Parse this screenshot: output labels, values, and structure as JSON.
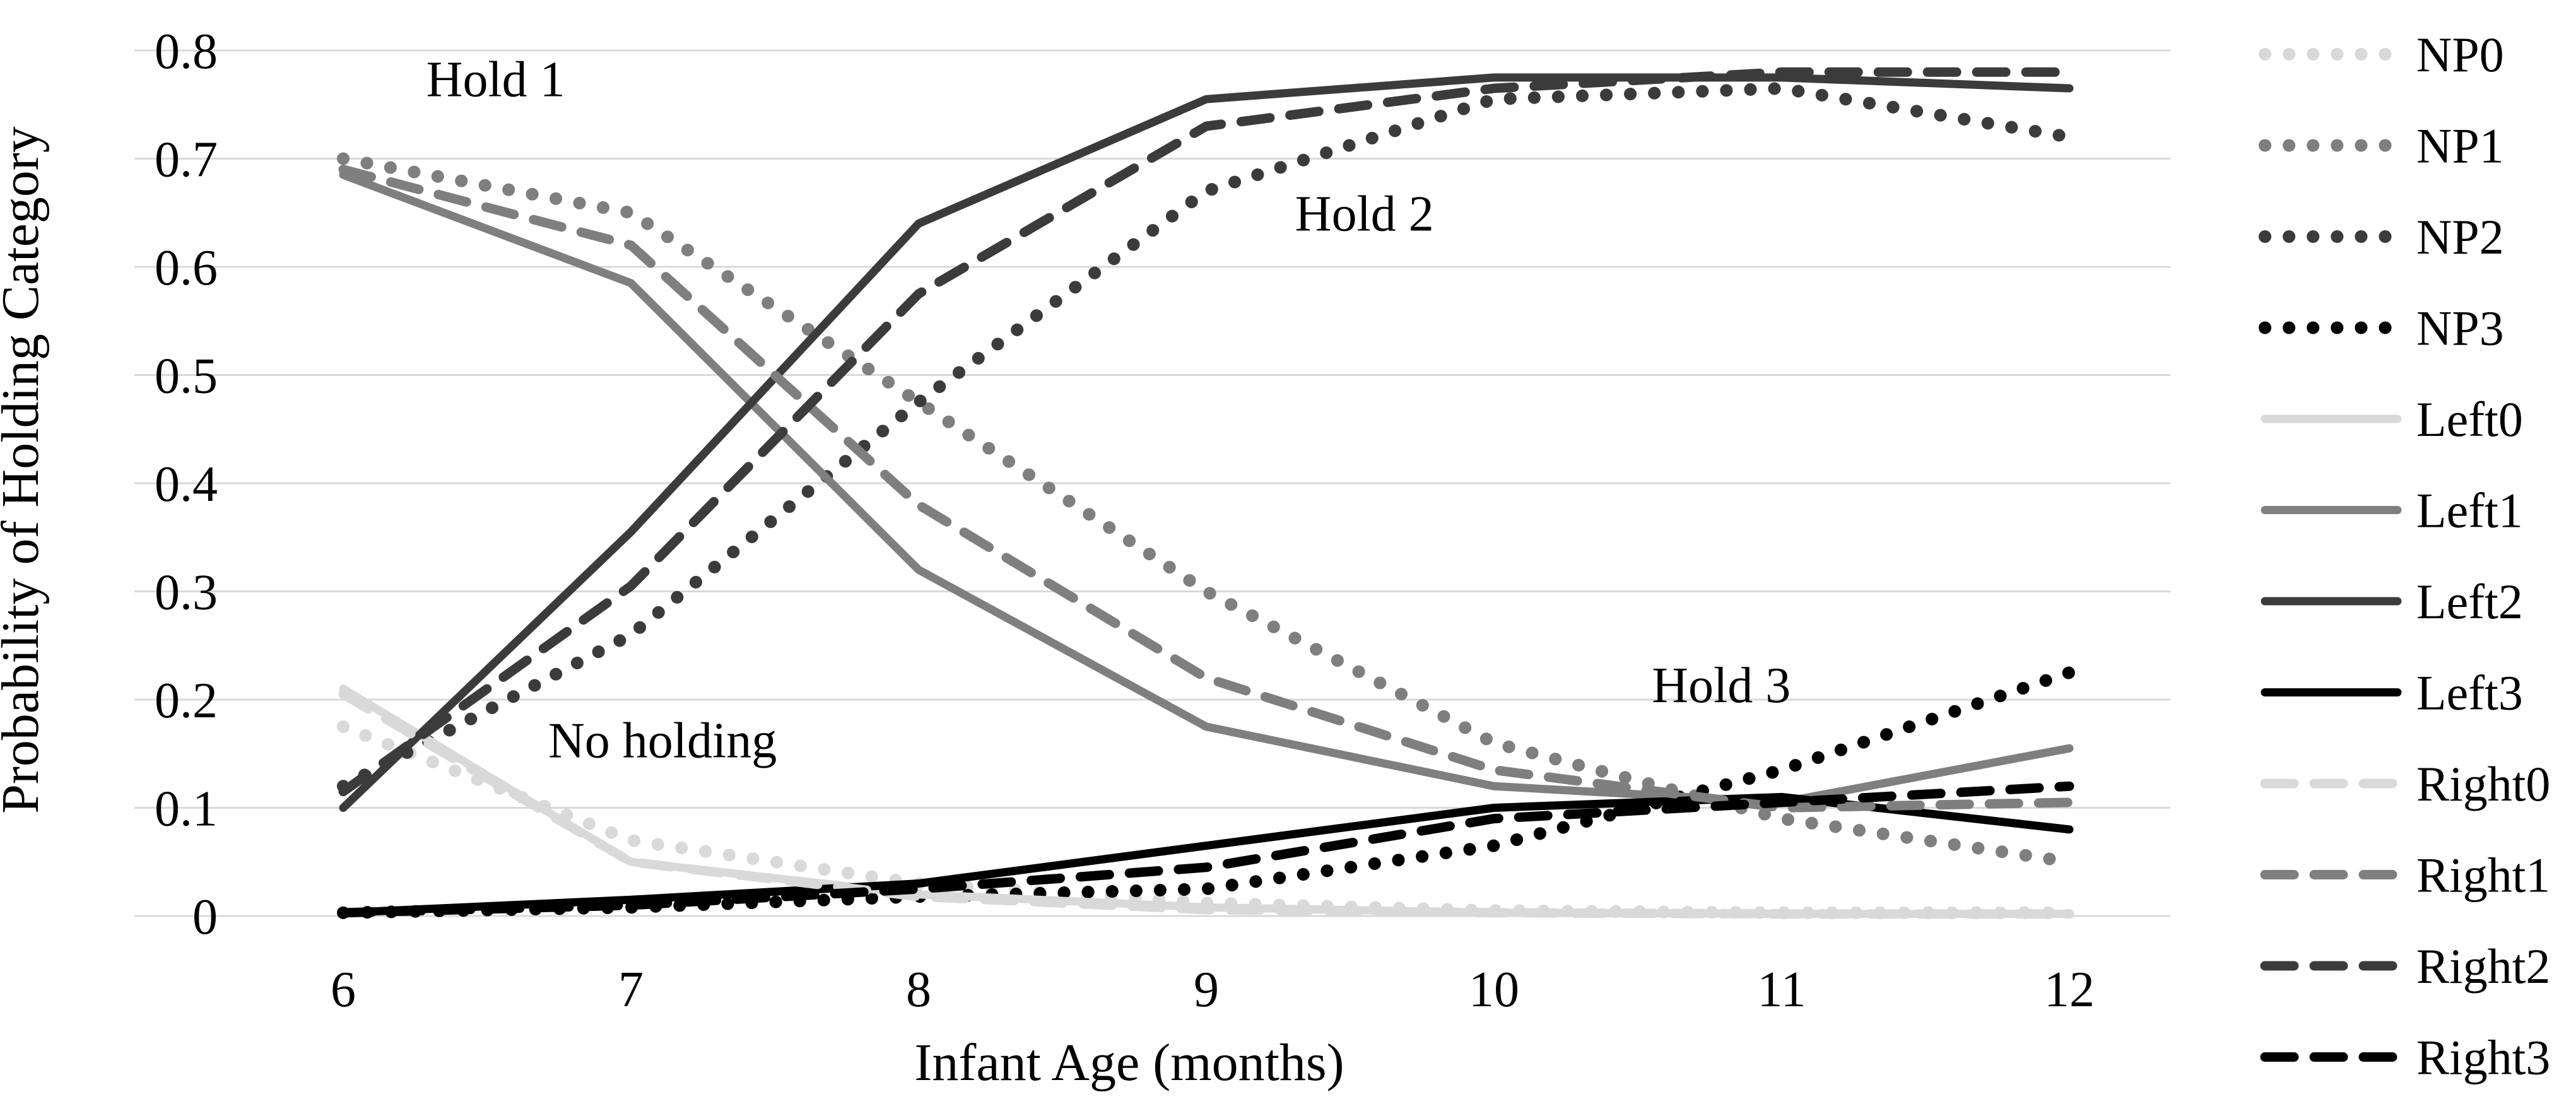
{
  "figure": {
    "y_axis_title": "Probability of Holding Category",
    "x_axis_title": "Infant Age (months)",
    "y_ticks": [
      "0.8",
      "0.7",
      "0.6",
      "0.5",
      "0.4",
      "0.3",
      "0.2",
      "0.1",
      "0"
    ],
    "x_ticks": [
      "6",
      "7",
      "8",
      "9",
      "10",
      "11",
      "12"
    ],
    "colors": {
      "shade0": "#d9d9d9",
      "shade1": "#7f7f7f",
      "shade2": "#3b3b3b",
      "shade3": "#000000",
      "gridline": "#d9d9d9"
    }
  },
  "chart_data": {
    "type": "line",
    "x": [
      6,
      7,
      8,
      9,
      10,
      11,
      12
    ],
    "xlabel": "Infant Age (months)",
    "ylabel": "Probability of Holding Category",
    "xlim": [
      6,
      12
    ],
    "ylim": [
      0,
      0.8
    ],
    "grid": true,
    "legend_position": "right",
    "series": [
      {
        "name": "NP0",
        "style": "dotted",
        "color": "#d9d9d9",
        "values": [
          0.175,
          0.07,
          0.03,
          0.012,
          0.005,
          0.003,
          0.003
        ]
      },
      {
        "name": "NP1",
        "style": "dotted",
        "color": "#7f7f7f",
        "values": [
          0.7,
          0.65,
          0.475,
          0.3,
          0.16,
          0.09,
          0.05
        ]
      },
      {
        "name": "NP2",
        "style": "dotted",
        "color": "#3b3b3b",
        "values": [
          0.12,
          0.26,
          0.475,
          0.67,
          0.755,
          0.765,
          0.72
        ]
      },
      {
        "name": "NP3",
        "style": "dotted",
        "color": "#000000",
        "values": [
          0.003,
          0.008,
          0.018,
          0.025,
          0.065,
          0.135,
          0.225
        ]
      },
      {
        "name": "Left0",
        "style": "solid",
        "color": "#d9d9d9",
        "values": [
          0.21,
          0.05,
          0.02,
          0.008,
          0.003,
          0.002,
          0.002
        ]
      },
      {
        "name": "Left1",
        "style": "solid",
        "color": "#7f7f7f",
        "values": [
          0.685,
          0.585,
          0.32,
          0.175,
          0.12,
          0.105,
          0.155
        ]
      },
      {
        "name": "Left2",
        "style": "solid",
        "color": "#3b3b3b",
        "values": [
          0.1,
          0.355,
          0.64,
          0.755,
          0.775,
          0.775,
          0.765
        ]
      },
      {
        "name": "Left3",
        "style": "solid",
        "color": "#000000",
        "values": [
          0.003,
          0.015,
          0.03,
          0.065,
          0.1,
          0.11,
          0.08
        ]
      },
      {
        "name": "Right0",
        "style": "dashed",
        "color": "#d9d9d9",
        "values": [
          0.205,
          0.05,
          0.018,
          0.006,
          0.003,
          0.002,
          0.002
        ]
      },
      {
        "name": "Right1",
        "style": "dashed",
        "color": "#7f7f7f",
        "values": [
          0.69,
          0.62,
          0.38,
          0.22,
          0.135,
          0.1,
          0.105
        ]
      },
      {
        "name": "Right2",
        "style": "dashed",
        "color": "#3b3b3b",
        "values": [
          0.115,
          0.305,
          0.575,
          0.73,
          0.765,
          0.78,
          0.78
        ]
      },
      {
        "name": "Right3",
        "style": "dashed",
        "color": "#000000",
        "values": [
          0.003,
          0.01,
          0.025,
          0.045,
          0.09,
          0.105,
          0.12
        ]
      }
    ],
    "annotations": [
      {
        "text": "Hold 1",
        "x": 6.53,
        "y": 0.774
      },
      {
        "text": "Hold 2",
        "x": 9.55,
        "y": 0.65
      },
      {
        "text": "Hold 3",
        "x": 10.79,
        "y": 0.214
      },
      {
        "text": "No holding",
        "x": 7.11,
        "y": 0.163
      }
    ]
  }
}
